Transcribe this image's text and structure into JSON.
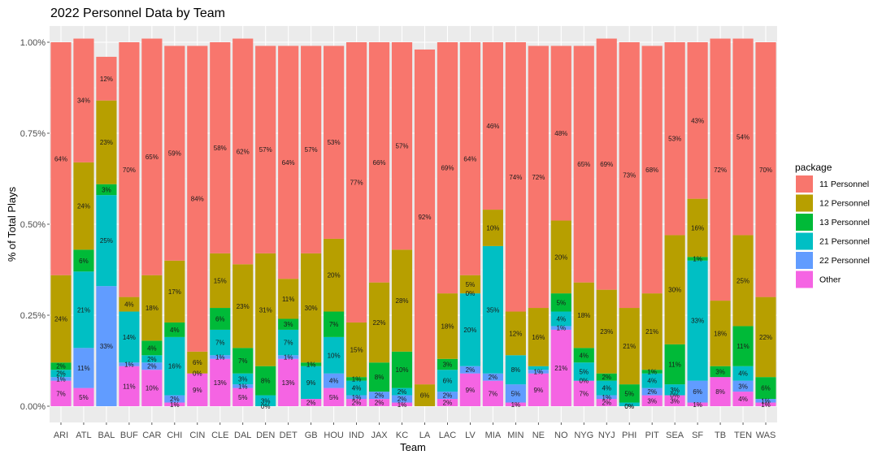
{
  "chart_data": {
    "type": "bar",
    "stacked": true,
    "title": "2022 Personnel Data by Team",
    "xlabel": "Team",
    "ylabel": "% of Total Plays",
    "ylim": [
      0,
      1
    ],
    "y_ticks": [
      0,
      0.25,
      0.5,
      0.75,
      1.0
    ],
    "y_tick_labels": [
      "0.00%",
      "0.25%",
      "0.50%",
      "0.75%",
      "1.00%"
    ],
    "grid": true,
    "legend_title": "package",
    "legend_position": "right",
    "categories": [
      "ARI",
      "ATL",
      "BAL",
      "BUF",
      "CAR",
      "CHI",
      "CIN",
      "CLE",
      "DAL",
      "DEN",
      "DET",
      "GB",
      "HOU",
      "IND",
      "JAX",
      "KC",
      "LA",
      "LAC",
      "LV",
      "MIA",
      "MIN",
      "NE",
      "NO",
      "NYG",
      "NYJ",
      "PHI",
      "PIT",
      "SEA",
      "SF",
      "TB",
      "TEN",
      "WAS"
    ],
    "series": [
      {
        "name": "Other",
        "color": "#F564E3",
        "values": [
          0.07,
          0.05,
          0.0,
          0.11,
          0.1,
          0.01,
          0.09,
          0.13,
          0.05,
          0.0,
          0.13,
          0.02,
          0.05,
          0.02,
          0.02,
          0.01,
          0.0,
          0.02,
          0.09,
          0.07,
          0.01,
          0.09,
          0.21,
          0.07,
          0.02,
          0.0,
          0.03,
          0.03,
          0.01,
          0.08,
          0.04,
          0.01
        ],
        "labels": [
          "7%",
          "5%",
          "",
          "11%",
          "10%",
          "1%",
          "9%",
          "13%",
          "5%",
          "0%",
          "13%",
          "2%",
          "5%",
          "2%",
          "2%",
          "1%",
          "",
          "2%",
          "9%",
          "7%",
          "1%",
          "9%",
          "21%",
          "7%",
          "2%",
          "0%",
          "3%",
          "3%",
          "1%",
          "8%",
          "4%",
          "1%"
        ]
      },
      {
        "name": "22 Personnel",
        "color": "#619CFF",
        "values": [
          0.01,
          0.11,
          0.33,
          0.01,
          0.02,
          0.02,
          0.0,
          0.01,
          0.01,
          0.0,
          0.01,
          0.0,
          0.04,
          0.01,
          0.02,
          0.02,
          0.0,
          0.02,
          0.02,
          0.02,
          0.05,
          0.01,
          0.01,
          0.0,
          0.01,
          0.0,
          0.02,
          0.0,
          0.06,
          0.0,
          0.03,
          0.01
        ],
        "labels": [
          "1%",
          "11%",
          "33%",
          "1%",
          "2%",
          "2%",
          "0%",
          "1%",
          "1%",
          "",
          "1%",
          "",
          "4%",
          "1%",
          "2%",
          "2%",
          "",
          "2%",
          "2%",
          "2%",
          "5%",
          "1%",
          "1%",
          "0%",
          "1%",
          "0%",
          "2%",
          "0%",
          "6%",
          "",
          "3%",
          "1%"
        ]
      },
      {
        "name": "21 Personnel",
        "color": "#00BFC4",
        "values": [
          0.02,
          0.21,
          0.25,
          0.14,
          0.02,
          0.16,
          0.0,
          0.07,
          0.03,
          0.03,
          0.07,
          0.09,
          0.1,
          0.04,
          0.0,
          0.02,
          0.0,
          0.06,
          0.2,
          0.35,
          0.08,
          0.01,
          0.04,
          0.05,
          0.04,
          0.01,
          0.04,
          0.03,
          0.33,
          0.0,
          0.04,
          0.0
        ],
        "labels": [
          "2%",
          "21%",
          "25%",
          "14%",
          "2%",
          "16%",
          "",
          "7%",
          "3%",
          "3%",
          "7%",
          "9%",
          "10%",
          "4%",
          "",
          "2%",
          "",
          "6%",
          "20%",
          "35%",
          "8%",
          "",
          "4%",
          "5%",
          "4%",
          "",
          "4%",
          "3%",
          "33%",
          "",
          "4%",
          ""
        ]
      },
      {
        "name": "13 Personnel",
        "color": "#00BA38",
        "values": [
          0.02,
          0.06,
          0.03,
          0.0,
          0.04,
          0.04,
          0.0,
          0.06,
          0.07,
          0.08,
          0.03,
          0.01,
          0.07,
          0.01,
          0.08,
          0.1,
          0.0,
          0.03,
          0.0,
          0.0,
          0.0,
          0.0,
          0.05,
          0.04,
          0.02,
          0.05,
          0.01,
          0.11,
          0.01,
          0.03,
          0.11,
          0.06
        ],
        "labels": [
          "2%",
          "6%",
          "3%",
          "",
          "4%",
          "4%",
          "",
          "6%",
          "7%",
          "8%",
          "3%",
          "1%",
          "7%",
          "1%",
          "8%",
          "10%",
          "",
          "3%",
          "0%",
          "",
          "",
          "",
          "5%",
          "4%",
          "2%",
          "5%",
          "1%",
          "11%",
          "1%",
          "3%",
          "11%",
          "6%"
        ]
      },
      {
        "name": "12 Personnel",
        "color": "#B79F00",
        "values": [
          0.24,
          0.24,
          0.23,
          0.04,
          0.18,
          0.17,
          0.06,
          0.15,
          0.23,
          0.31,
          0.11,
          0.3,
          0.2,
          0.15,
          0.22,
          0.28,
          0.06,
          0.18,
          0.05,
          0.1,
          0.12,
          0.16,
          0.2,
          0.18,
          0.23,
          0.21,
          0.21,
          0.3,
          0.16,
          0.18,
          0.25,
          0.22
        ],
        "labels": [
          "24%",
          "24%",
          "23%",
          "4%",
          "18%",
          "17%",
          "6%",
          "15%",
          "23%",
          "31%",
          "11%",
          "30%",
          "20%",
          "15%",
          "22%",
          "28%",
          "6%",
          "18%",
          "5%",
          "10%",
          "12%",
          "16%",
          "20%",
          "18%",
          "23%",
          "21%",
          "21%",
          "30%",
          "16%",
          "18%",
          "25%",
          "22%"
        ]
      },
      {
        "name": "11 Personnel",
        "color": "#F8766D",
        "values": [
          0.64,
          0.34,
          0.12,
          0.7,
          0.65,
          0.59,
          0.84,
          0.58,
          0.62,
          0.57,
          0.64,
          0.57,
          0.53,
          0.77,
          0.66,
          0.57,
          0.92,
          0.69,
          0.64,
          0.46,
          0.74,
          0.72,
          0.48,
          0.65,
          0.69,
          0.73,
          0.68,
          0.53,
          0.43,
          0.72,
          0.54,
          0.7
        ],
        "labels": [
          "64%",
          "34%",
          "12%",
          "70%",
          "65%",
          "59%",
          "84%",
          "58%",
          "62%",
          "57%",
          "64%",
          "57%",
          "53%",
          "77%",
          "66%",
          "57%",
          "92%",
          "69%",
          "64%",
          "46%",
          "74%",
          "72%",
          "48%",
          "65%",
          "69%",
          "73%",
          "68%",
          "53%",
          "43%",
          "72%",
          "54%",
          "70%"
        ]
      }
    ],
    "legend_order": [
      "11 Personnel",
      "12 Personnel",
      "13 Personnel",
      "21 Personnel",
      "22 Personnel",
      "Other"
    ]
  }
}
